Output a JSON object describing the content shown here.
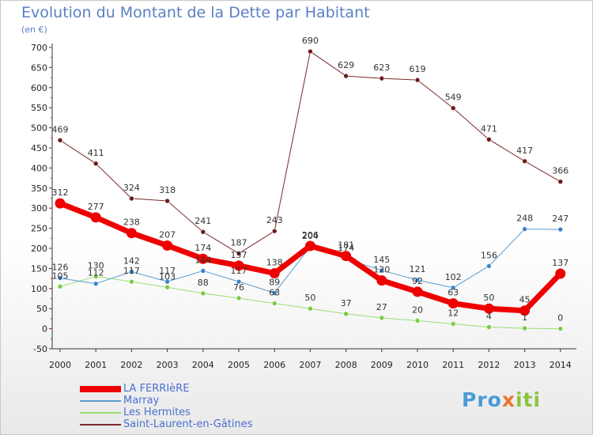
{
  "header": {
    "title": "Evolution du Montant de la Dette par Habitant",
    "unit": "(en €)"
  },
  "colors": {
    "title": "#5a7fc4",
    "axis": "#333333",
    "gridline": "#e0e0e0",
    "tick_marks": "#dd2222",
    "legend_text": "#4a6fd0"
  },
  "brand": {
    "text": "Proxiti",
    "colors": [
      "#4a9ad8",
      "#e8792a",
      "#8bc53f"
    ]
  },
  "chart_data": {
    "type": "line",
    "title": "Evolution du Montant de la Dette par Habitant",
    "ylabel": "(en €)",
    "xlabel": "",
    "x": [
      "2000",
      "2001",
      "2002",
      "2003",
      "2004",
      "2005",
      "2006",
      "2007",
      "2008",
      "2009",
      "2010",
      "2011",
      "2012",
      "2013",
      "2014"
    ],
    "ylim": [
      -50,
      700
    ],
    "yticks": [
      -50,
      0,
      50,
      100,
      150,
      200,
      250,
      300,
      350,
      400,
      450,
      500,
      550,
      600,
      650,
      700
    ],
    "grid": false,
    "legend_position": "bottom-left",
    "series": [
      {
        "name": "Saint-Laurent-en-Gâtines",
        "color": "#7a2a2a",
        "marker_color": "#6b1a1a",
        "width": 1,
        "values": [
          469,
          411,
          324,
          318,
          241,
          187,
          243,
          690,
          629,
          623,
          619,
          549,
          471,
          417,
          366
        ],
        "labels": [
          "469",
          "411",
          "324",
          "318",
          "241",
          "187",
          "243",
          "690",
          "629",
          "623",
          "619",
          "549",
          "471",
          "417",
          "366"
        ]
      },
      {
        "name": "Les Hermites",
        "color": "#99dd77",
        "marker_color": "#77cc44",
        "width": 1,
        "values": [
          105,
          130,
          117,
          103,
          88,
          76,
          63,
          50,
          37,
          27,
          20,
          12,
          4,
          1,
          0
        ],
        "labels": [
          "105",
          "130",
          "117",
          "103",
          "88",
          "76",
          "63",
          "50",
          "37",
          "27",
          "20",
          "12",
          "4",
          "1",
          "0"
        ]
      },
      {
        "name": "Marray",
        "color": "#5a9cd0",
        "marker_color": "#3a84c8",
        "width": 1,
        "values": [
          126,
          112,
          142,
          117,
          144,
          117,
          89,
          204,
          174,
          145,
          121,
          102,
          156,
          248,
          247
        ],
        "labels": [
          "126",
          "112",
          "142",
          "117",
          "144",
          "117",
          "89",
          "204",
          "174",
          "145",
          "121",
          "102",
          "156",
          "248",
          "247"
        ]
      },
      {
        "name": "LA FERRIèRE",
        "color": "#ee0000",
        "marker_color": "#ee0000",
        "width": 7,
        "values": [
          312,
          277,
          238,
          207,
          174,
          157,
          138,
          206,
          181,
          120,
          92,
          63,
          50,
          45,
          137
        ],
        "labels": [
          "312",
          "277",
          "238",
          "207",
          "174",
          "157",
          "138",
          "206",
          "181",
          "120",
          "92",
          "63",
          "50",
          "45",
          "137"
        ]
      }
    ]
  },
  "legend": {
    "items": [
      "LA FERRIèRE",
      "Marray",
      "Les Hermites",
      "Saint-Laurent-en-Gâtines"
    ]
  }
}
